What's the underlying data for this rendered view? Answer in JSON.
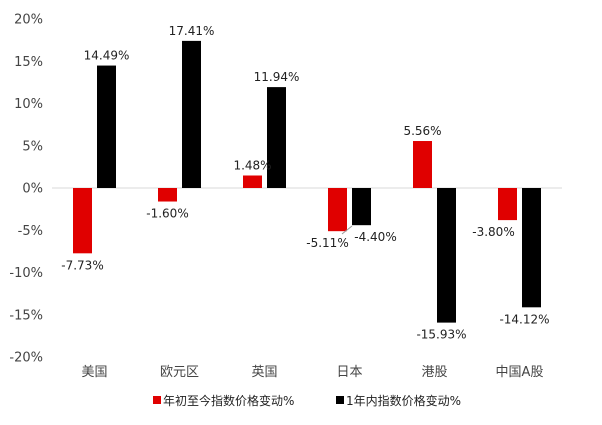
{
  "chart_data": {
    "type": "bar",
    "categories": [
      "美国",
      "欧元区",
      "英国",
      "日本",
      "港股",
      "中国A股"
    ],
    "series": [
      {
        "name": "年初至今指数价格变动%",
        "color": "#e00000",
        "values": [
          -7.73,
          -1.6,
          1.48,
          -5.11,
          5.56,
          -3.8
        ],
        "labels": [
          "-7.73%",
          "-1.60%",
          "1.48%",
          "-5.11%",
          "5.56%",
          "-3.80%"
        ]
      },
      {
        "name": "1年内指数价格变动%",
        "color": "#000000",
        "values": [
          14.49,
          17.41,
          11.94,
          -4.4,
          -15.93,
          -14.12
        ],
        "labels": [
          "14.49%",
          "17.41%",
          "11.94%",
          "-4.40%",
          "-15.93%",
          "-14.12%"
        ]
      }
    ],
    "ylim": [
      -20,
      20
    ],
    "yticks": [
      -20,
      -15,
      -10,
      -5,
      0,
      5,
      10,
      15,
      20
    ],
    "ytick_labels": [
      "-20%",
      "-15%",
      "-10%",
      "-5%",
      "0%",
      "5%",
      "10%",
      "15%",
      "20%"
    ],
    "title": "",
    "xlabel": "",
    "ylabel": "",
    "grid": false,
    "legend_position": "bottom"
  }
}
